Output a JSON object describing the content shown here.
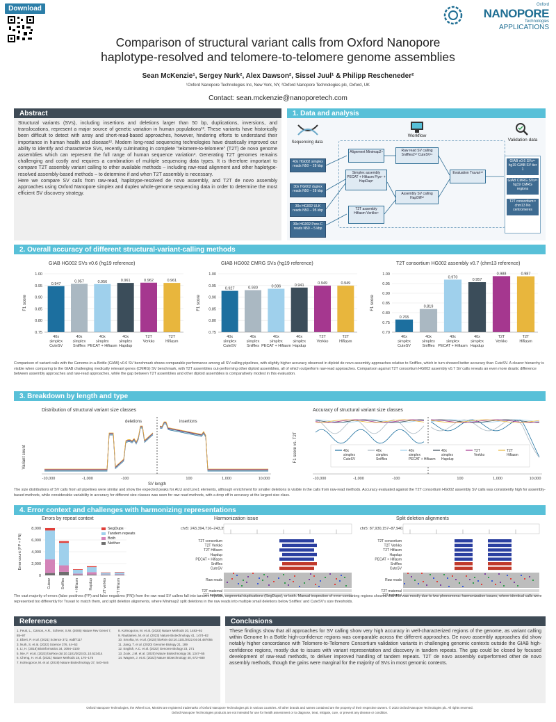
{
  "header": {
    "download_label": "Download",
    "logo_top": "Oxford",
    "logo_brand": "NANOPORE",
    "logo_sub": "Technologies",
    "logo_tag": "APPLICATIONS",
    "title_line1": "Comparison of structural variant calls from Oxford Nanopore",
    "title_line2": "haplotype-resolved and telomere-to-telomere genome assemblies",
    "authors": "Sean McKenzie¹, Sergey Nurk², Alex Dawson², Sissel Juul¹ & Philipp Rescheneder²",
    "affiliations": "¹Oxford Nanopore Technologies Inc, New York, NY, ²Oxford Nanopore Technologies plc, Oxford, UK",
    "contact": "Contact: sean.mckenzie@nanoporetech.com"
  },
  "abstract": {
    "title": "Abstract",
    "p1": "Structural variants (SVs), including insertions and deletions larger than 50 bp, duplications, inversions, and translocations, represent a major source of genetic variation in human populations¹². These variants have historically been difficult to detect with array and short-read-based approaches, however, hindering efforts to understand their importance in human health and disease¹². Modern long-read sequencing technologies have drastically improved our ability to identify and characterize SVs, recently culminating in complete \"telomere-to-telomere\" (T2T) de novo genome assemblies which can represent the full range of human sequence variation³. Generating T2T genomes remains challenging and costly and requires a combination of multiple sequencing data types. It is therefore important to compare T2T assembly variant calling to other available methods – including raw-read alignment and other haplotype-resolved assembly-based methods – to determine if and when T2T assembly is necessary.",
    "p2": "Here we compare SV calls from raw-read, haplotype-resolved de novo assembly, and T2T de novo assembly approaches using Oxford Nanopore simplex and duplex whole-genome sequencing data in order to determine the most efficient SV discovery strategy."
  },
  "section1": {
    "title": "1. Data and analysis",
    "seq_label": "Sequencing data",
    "workflow_label": "Workflow",
    "val_label": "Validation data",
    "seq_boxes": [
      "40x HG002 simplex reads N50 – 28 kbp",
      "30x HG002 duplex reads N50 – 28 kbp",
      "30x HG002 ULK reads N50 – 95 kbp",
      "30x HG002 Pore-C reads N50 – 5 kbp"
    ],
    "flow_boxes": [
      "Alignment Minimap2⁴",
      "Simplex assembly PECAT + Hifiasm Flye⁷ + HapDup⁸",
      "T2T assembly Hifiasm Verkko⁹",
      "Raw read SV calling Sniffles2¹⁰ CuteSV¹¹",
      "Assembly SV calling HapDiff¹²",
      "Evaluation Truvari¹³"
    ],
    "val_boxes": [
      "GIAB v0.6 SVs¹⁴ hg19 GIAB SV tier 1",
      "GIAB CMRG SVs¹⁵ hg19 CMRG regions",
      "T2T consortium¹⁶ chm13 No centromeres"
    ]
  },
  "section2": {
    "title": "2. Overall accuracy of different structural-variant-calling methods",
    "caption": "Comparison of variant calls with the Genome-in-a-Bottle (GIAB) v0.6 SV benchmark shows comparable performance among all SV-calling pipelines, with slightly higher accuracy observed in diploid de novo assembly approaches relative to Sniffles, which in turn showed better accuracy than CuteSV. A clearer hierarchy is visible when comparing to the GIAB challenging medically relevant genes (CMRG) SV benchmark, with T2T assemblies out-performing other diploid assemblies, all of which outperform raw-read approaches. Comparison against T2T consortium HG002 assembly v0.7 SV calls reveals an even more drastic difference between assembly approaches and raw-read approaches, while the gap between T2T assemblies and other diploid assemblies is comparatively modest in this evaluation."
  },
  "chart_data": [
    {
      "type": "bar",
      "title": "GIAB HG002 SVs v0.6 (hg19 reference)",
      "ylabel": "F1 score",
      "ylim": [
        0.75,
        1.0
      ],
      "yticks": [
        "0.75",
        "0.80",
        "0.85",
        "0.90",
        "0.95",
        "1.00"
      ],
      "categories": [
        "40x simplex CuteSV",
        "40x simplex Sniffles",
        "40x simplex PECAT + Hifiasm",
        "40x simplex Hapdup",
        "T2T Verkko",
        "T2T Hifiasm"
      ],
      "values": [
        0.947,
        0.957,
        0.956,
        0.961,
        0.962,
        0.961
      ],
      "labels": [
        "0.947",
        "0.957",
        "0.956",
        "0.961",
        "0.962",
        "0.961"
      ]
    },
    {
      "type": "bar",
      "title": "GIAB HG002 CMRG SVs (hg19 reference)",
      "ylabel": "F1 score",
      "ylim": [
        0.75,
        1.0
      ],
      "yticks": [
        "0.75",
        "0.80",
        "0.85",
        "0.90",
        "0.95",
        "1.00"
      ],
      "categories": [
        "40x simplex CuteSV",
        "40x simplex Sniffles",
        "40x simplex PECAT + Hifiasm",
        "40x simplex Hapdup",
        "T2T Verkko",
        "T2T Hifiasm"
      ],
      "values": [
        0.927,
        0.93,
        0.936,
        0.941,
        0.949,
        0.949
      ],
      "labels": [
        "0.927",
        "0.930",
        "0.936",
        "0.941",
        "0.949",
        "0.949"
      ]
    },
    {
      "type": "bar",
      "title": "T2T consortium HG002 assembly v0.7 (chm13 reference)",
      "ylabel": "F1 score",
      "ylim": [
        0.7,
        1.0
      ],
      "yticks": [
        "0.70",
        "0.75",
        "0.80",
        "0.85",
        "0.90",
        "0.95",
        "1.00"
      ],
      "categories": [
        "40x simplex CuteSV",
        "40x simplex Sniffles",
        "40x simplex PECAT + Hifiasm",
        "40x simplex Hapdup",
        "T2T Verkko",
        "T2T Hifiasm"
      ],
      "values": [
        0.765,
        0.819,
        0.97,
        0.957,
        0.988,
        0.987
      ],
      "labels": [
        "0.765",
        "0.819",
        "0.970",
        "0.957",
        "0.988",
        "0.987"
      ]
    },
    {
      "type": "bar",
      "title": "Errors by repeat context",
      "ylabel": "Error count (FP + FN)",
      "ylim": [
        0,
        8000
      ],
      "yticks": [
        "0",
        "2,000",
        "4,000",
        "6,000",
        "8,000"
      ],
      "categories": [
        "Cutesv",
        "Sniffles",
        "PECAT + Hifiasm",
        "Hapdup",
        "T2T verkko",
        "T2T Hifiasm"
      ],
      "series": [
        {
          "name": "SegDups",
          "values": [
            400,
            300,
            100,
            150,
            80,
            80
          ]
        },
        {
          "name": "Tandem repeats",
          "values": [
            4900,
            3800,
            650,
            850,
            250,
            300
          ]
        },
        {
          "name": "Both",
          "values": [
            2300,
            1100,
            150,
            400,
            60,
            80
          ]
        },
        {
          "name": "Neither",
          "values": [
            400,
            600,
            150,
            150,
            100,
            100
          ]
        }
      ]
    }
  ],
  "bar_colors": [
    "#1c6f9f",
    "#aab8c2",
    "#9fd0ec",
    "#3b4d5a",
    "#a5378f",
    "#e8b63d"
  ],
  "stack_colors": [
    "#e0403a",
    "#9fd0ec",
    "#d383b8",
    "#6e6e6e"
  ],
  "section3": {
    "title": "3. Breakdown by length and type",
    "left_title": "Distribution of structural variant size classes",
    "right_title": "Accuracy of structural variant size classes",
    "left_ylabel": "Variant count",
    "right_ylabel": "F1 score vs. T2T",
    "xlabel": "SV length",
    "deletions": "deletions",
    "insertions": "insertions",
    "xticks": [
      "-10,000",
      "-1,000",
      "-100",
      "100",
      "1,000",
      "10,000"
    ],
    "legend": [
      "40x simplex CuteSV",
      "40x simplex Sniffles",
      "40x simplex PECAT + Hifiasm",
      "40x simplex Hapdup",
      "T2T Verkko",
      "T2T Hifiasm"
    ],
    "caption": "The size distributions of SV calls from all pipelines were similar and show the expected peaks for ALU and Line1 elements, although enrichment for smaller deletions is visible in the calls from raw-read methods. Accuracy evaluated against the T2T consortium HG002 assembly SV calls was consistently high for assembly-based methods, while considerable variability in accuracy for different size classes was seen for raw read methods, with a drop off in accuracy at the largest size class."
  },
  "section4": {
    "title": "4. Error context and challenges with harmonizing representations",
    "stack_title": "Errors by repeat context",
    "harm_title": "Harmonization issue",
    "split_title": "Split deletion alignments",
    "harm_region": "chr5: 243,394,716–243,396,485",
    "split_region": "chr5: 87,930,157–87,940,490",
    "track_labels": [
      "T2T consortium",
      "T2T Verkko",
      "T2T Hifiasm",
      "Hapdup",
      "PECAT + Hifiasm",
      "Sniffles",
      "CuteSV"
    ],
    "raw_reads": "Raw reads",
    "maternal": "T2T maternal",
    "paternal": "T2T paternal",
    "caption": "The vast majority of errors (false positives (FP) and false negatives (FN)) from the raw read SV callers fall into tandem repeats, segmental duplications (SegDups), or both. Manual inspection of error-containing regions showed that this was mostly due to two phenomena: harmonization issues, where identical calls were represented too differently for Truvari to match them, and split deletion alignments, where Minimap2 split deletions in the raw reads into multiple small deletions below Sniffles' and CuteSV's size thresholds."
  },
  "references": {
    "title": "References",
    "col1": [
      "1. Feuk, L., Carson, A.R., Scherer, S.W. (2006) Nature Rev Genet 7, 85–97",
      "2. Ebert, P. et al. (2021) Science 372, eabf7117",
      "3. Nurk, S. et al. (2022) Science 376, 44–53",
      "4. Li, H. (2018) Bioinformatics 34, 3094–3100",
      "5. Nie, F. et al. (2023) bioRxiv doi:10.1101/2023.01.10.523414",
      "6. Cheng, H. et al. (2021) Nature Methods 18, 170–175",
      "7. Kolmogorov, M. et al. (2019) Nature Biotechnology 37, 540–546"
    ],
    "col2": [
      "8. Kolmogorov, M. et al. (2023) Nature Methods 20, 1483–92",
      "9. Rautiainen, M. et al. (2023) Nature Biotechnology 41, 1474–82",
      "10. Smolka, M. et al. (2023) bioRxiv doi:10.1101/2022.04.04.487055",
      "11. Jiang, T. et al. (2020) Genome Biology 21, 189",
      "12. English, A.C. et al. (2022) Genome Biology 23, 271",
      "13. Zook, J.M. et al. (2020) Nature Biotechnology 38, 1347–55",
      "14. Wagner, J. et al. (2022) Nature Biotechnology 40, 672–680"
    ]
  },
  "conclusions": {
    "title": "Conclusions",
    "text": "These findings show that all approaches for SV calling show very high accuracy in well-characterized regions of the genome, as variant calling within Genome In a Bottle high-confidence regions was comparable across the different approaches. De novo assembly approaches did show notably higher concordance with Telomere-to-Telomere Consortium validation variants in challenging genomic contexts outside the GIAB high-confidence regions, mostly due to issues with variant representation and discovery in tandem repeats. The gap could be closed by focused development of raw-read methods, to deliver improved handling of tandem repeats. T2T de novo assembly outperformed other de novo assembly methods, though the gains were marginal for the majority of SVs in most genomic contexts."
  },
  "footer": {
    "line1": "Oxford Nanopore Technologies, the Wheel icon, MinION are registered trademarks of Oxford Nanopore Technologies plc in various countries. All other brands and names contained are the property of their respective owners. © 2023 Oxford Nanopore Technologies plc. All rights reserved.",
    "line2": "Oxford Nanopore Technologies products are not intended for use for health assessment or to diagnose, treat, mitigate, cure, or prevent any disease or condition."
  }
}
